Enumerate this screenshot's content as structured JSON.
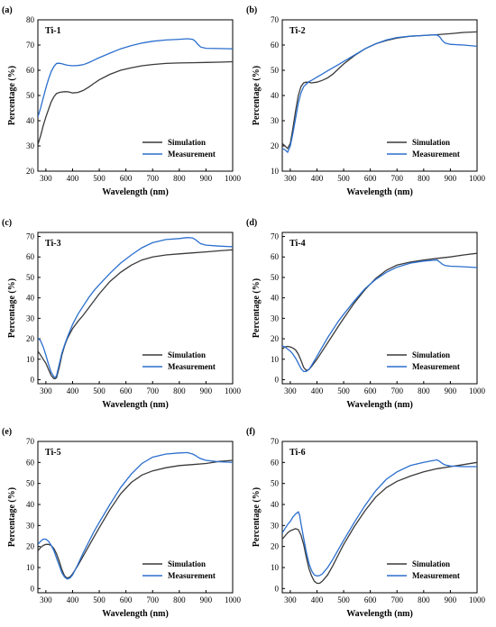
{
  "chart_data": [
    {
      "type": "line",
      "panel_label": "(a)",
      "title": "Ti-1",
      "xlabel": "Wavelength (nm)",
      "ylabel": "Percentage (%)",
      "xlim": [
        270,
        1000
      ],
      "ylim": [
        20,
        80
      ],
      "xticks": [
        300,
        400,
        500,
        600,
        700,
        800,
        900,
        1000
      ],
      "yticks": [
        20,
        30,
        40,
        50,
        60,
        70,
        80
      ],
      "legend": "bottom-right",
      "series": [
        {
          "name": "Simulation",
          "color": "#3a3a3a",
          "x": [
            270,
            280,
            290,
            300,
            310,
            320,
            330,
            340,
            350,
            360,
            370,
            380,
            390,
            400,
            420,
            440,
            460,
            480,
            500,
            540,
            580,
            620,
            660,
            700,
            750,
            800,
            850,
            900,
            950,
            1000
          ],
          "y": [
            30.5,
            34,
            38,
            41.5,
            44.5,
            47.5,
            49.5,
            50.8,
            51.2,
            51.4,
            51.5,
            51.5,
            51.3,
            51,
            51.2,
            52,
            53.3,
            54.8,
            56.2,
            58.4,
            60,
            61,
            61.8,
            62.3,
            62.7,
            62.9,
            63,
            63.1,
            63.2,
            63.4
          ]
        },
        {
          "name": "Measurement",
          "color": "#2b6fce",
          "x": [
            270,
            280,
            290,
            300,
            310,
            320,
            330,
            340,
            350,
            360,
            370,
            380,
            400,
            420,
            440,
            460,
            480,
            500,
            540,
            580,
            620,
            660,
            700,
            750,
            800,
            830,
            850,
            860,
            870,
            880,
            900,
            950,
            1000
          ],
          "y": [
            41.5,
            45,
            49,
            53,
            56.5,
            59.5,
            61.5,
            62.7,
            62.8,
            62.6,
            62.3,
            62,
            61.8,
            61.9,
            62.2,
            63,
            64,
            65,
            66.8,
            68.5,
            69.8,
            70.8,
            71.5,
            72,
            72.3,
            72.5,
            72.3,
            71.5,
            70.2,
            69.2,
            68.7,
            68.6,
            68.5
          ]
        }
      ]
    },
    {
      "type": "line",
      "panel_label": "(b)",
      "title": "Ti-2",
      "xlabel": "Wavelength (nm)",
      "ylabel": "Percentage (%)",
      "xlim": [
        270,
        1000
      ],
      "ylim": [
        10,
        70
      ],
      "xticks": [
        300,
        400,
        500,
        600,
        700,
        800,
        900,
        1000
      ],
      "yticks": [
        10,
        20,
        30,
        40,
        50,
        60,
        70
      ],
      "legend": "bottom-right",
      "series": [
        {
          "name": "Simulation",
          "color": "#3a3a3a",
          "x": [
            270,
            280,
            290,
            300,
            310,
            320,
            330,
            340,
            350,
            360,
            370,
            380,
            400,
            420,
            440,
            460,
            480,
            500,
            540,
            580,
            620,
            660,
            700,
            750,
            800,
            850,
            900,
            950,
            1000
          ],
          "y": [
            21,
            20,
            19,
            21,
            27,
            34,
            40,
            43.5,
            45,
            45.3,
            45.2,
            45,
            45.3,
            46,
            47,
            48.5,
            50.5,
            52.5,
            55.8,
            58.5,
            60.5,
            61.8,
            62.8,
            63.5,
            63.8,
            64.1,
            64.5,
            65,
            65.2
          ]
        },
        {
          "name": "Measurement",
          "color": "#2b6fce",
          "x": [
            270,
            280,
            290,
            300,
            310,
            320,
            330,
            340,
            350,
            360,
            370,
            380,
            400,
            420,
            440,
            460,
            480,
            500,
            540,
            580,
            620,
            660,
            700,
            750,
            800,
            830,
            850,
            860,
            870,
            880,
            900,
            950,
            1000
          ],
          "y": [
            19,
            18.5,
            17.5,
            20,
            25,
            31,
            37,
            41,
            43.5,
            44.5,
            45.5,
            46,
            47.3,
            48.5,
            49.8,
            51,
            52.2,
            53.5,
            56,
            58.5,
            60.5,
            62,
            63,
            63.5,
            63.8,
            64,
            64,
            63.2,
            61.8,
            60.8,
            60.3,
            60,
            59.5
          ]
        }
      ]
    },
    {
      "type": "line",
      "panel_label": "(c)",
      "title": "Ti-3",
      "xlabel": "Wavelength (nm)",
      "ylabel": "Percentage (%)",
      "xlim": [
        270,
        1000
      ],
      "ylim": [
        -2,
        72
      ],
      "xticks": [
        300,
        400,
        500,
        600,
        700,
        800,
        900,
        1000
      ],
      "yticks": [
        0,
        10,
        20,
        30,
        40,
        50,
        60,
        70
      ],
      "legend": "bottom-right",
      "series": [
        {
          "name": "Simulation",
          "color": "#3a3a3a",
          "x": [
            270,
            280,
            290,
            300,
            310,
            320,
            330,
            335,
            340,
            350,
            360,
            370,
            380,
            400,
            420,
            440,
            460,
            480,
            500,
            540,
            580,
            620,
            660,
            700,
            750,
            800,
            850,
            900,
            950,
            1000
          ],
          "y": [
            14,
            12,
            10,
            8,
            5,
            2,
            0.5,
            0.5,
            1,
            6,
            12,
            16.5,
            20,
            25,
            28.5,
            31.5,
            35,
            38.5,
            42,
            48,
            52.5,
            56,
            58.5,
            60,
            61,
            61.5,
            62,
            62.5,
            63,
            63.5
          ]
        },
        {
          "name": "Measurement",
          "color": "#2b6fce",
          "x": [
            270,
            280,
            290,
            300,
            310,
            320,
            330,
            335,
            340,
            350,
            360,
            370,
            380,
            400,
            420,
            440,
            460,
            480,
            500,
            540,
            580,
            620,
            660,
            700,
            750,
            800,
            830,
            850,
            860,
            870,
            880,
            900,
            950,
            1000
          ],
          "y": [
            20.5,
            19,
            16,
            12,
            7.5,
            3.5,
            1.5,
            1,
            2,
            7.5,
            13,
            17,
            20.5,
            27,
            32,
            36,
            40,
            43.5,
            46.5,
            52,
            57,
            61,
            64.5,
            67,
            68.5,
            69,
            69.5,
            69.3,
            68.5,
            67.5,
            66.5,
            65.8,
            65.3,
            65
          ]
        }
      ]
    },
    {
      "type": "line",
      "panel_label": "(d)",
      "title": "Ti-4",
      "xlabel": "Wavelength (nm)",
      "ylabel": "Percentage (%)",
      "xlim": [
        270,
        1000
      ],
      "ylim": [
        -2,
        72
      ],
      "xticks": [
        300,
        400,
        500,
        600,
        700,
        800,
        900,
        1000
      ],
      "yticks": [
        0,
        10,
        20,
        30,
        40,
        50,
        60,
        70
      ],
      "legend": "bottom-right",
      "series": [
        {
          "name": "Simulation",
          "color": "#3a3a3a",
          "x": [
            270,
            280,
            290,
            300,
            310,
            320,
            330,
            340,
            350,
            360,
            370,
            380,
            400,
            420,
            440,
            460,
            480,
            500,
            540,
            580,
            620,
            660,
            700,
            750,
            800,
            850,
            900,
            950,
            1000
          ],
          "y": [
            15,
            16,
            16.3,
            16,
            15.5,
            14.5,
            12.5,
            9.5,
            6,
            4.5,
            5,
            6.5,
            10,
            14,
            18,
            22,
            26,
            30,
            37.5,
            44,
            49.5,
            53.5,
            56,
            57.5,
            58.5,
            59.3,
            60,
            61,
            61.8
          ]
        },
        {
          "name": "Measurement",
          "color": "#2b6fce",
          "x": [
            270,
            280,
            290,
            300,
            310,
            320,
            330,
            340,
            350,
            360,
            370,
            380,
            400,
            420,
            440,
            460,
            480,
            500,
            540,
            580,
            620,
            660,
            700,
            750,
            800,
            830,
            850,
            860,
            870,
            880,
            900,
            950,
            1000
          ],
          "y": [
            16.5,
            16,
            15,
            14,
            12.5,
            10.5,
            8,
            5.5,
            4,
            4,
            5,
            7,
            11.5,
            16,
            20.5,
            24.5,
            28.5,
            32,
            38.5,
            44.5,
            49,
            52.5,
            55,
            57,
            58,
            58.3,
            58.5,
            57.5,
            56.5,
            55.8,
            55.5,
            55.2,
            54.8
          ]
        }
      ]
    },
    {
      "type": "line",
      "panel_label": "(e)",
      "title": "Ti-5",
      "xlabel": "Wavelength (nm)",
      "ylabel": "Percentage (%)",
      "xlim": [
        270,
        1000
      ],
      "ylim": [
        -2,
        70
      ],
      "xticks": [
        300,
        400,
        500,
        600,
        700,
        800,
        900,
        1000
      ],
      "yticks": [
        0,
        10,
        20,
        30,
        40,
        50,
        60,
        70
      ],
      "legend": "bottom-right",
      "series": [
        {
          "name": "Simulation",
          "color": "#3a3a3a",
          "x": [
            270,
            280,
            290,
            300,
            310,
            320,
            330,
            340,
            350,
            360,
            370,
            380,
            390,
            400,
            420,
            440,
            460,
            480,
            500,
            540,
            580,
            620,
            660,
            700,
            750,
            800,
            850,
            900,
            950,
            1000
          ],
          "y": [
            18,
            19.5,
            20.5,
            21,
            21,
            20.5,
            19,
            16.5,
            13,
            9,
            6,
            5,
            5.5,
            7,
            11,
            15.5,
            20,
            24.5,
            29,
            37.5,
            45,
            50.5,
            54,
            56,
            57.5,
            58.5,
            59,
            59.5,
            60.5,
            61
          ]
        },
        {
          "name": "Measurement",
          "color": "#2b6fce",
          "x": [
            270,
            280,
            290,
            300,
            310,
            320,
            330,
            340,
            350,
            360,
            370,
            380,
            390,
            400,
            420,
            440,
            460,
            480,
            500,
            540,
            580,
            620,
            660,
            700,
            750,
            800,
            830,
            850,
            860,
            870,
            880,
            900,
            950,
            1000
          ],
          "y": [
            21,
            22.5,
            23.5,
            23.5,
            22.5,
            20.5,
            18,
            14.5,
            11,
            7.5,
            5.5,
            4.5,
            5,
            6.5,
            11.5,
            17,
            22,
            27,
            31.5,
            40,
            48,
            54.5,
            59.5,
            62.5,
            64,
            64.5,
            64.7,
            64,
            63.3,
            62.5,
            61.8,
            61,
            60.3,
            60
          ]
        }
      ]
    },
    {
      "type": "line",
      "panel_label": "(f)",
      "title": "Ti-6",
      "xlabel": "Wavelength (nm)",
      "ylabel": "Percentage (%)",
      "xlim": [
        270,
        1000
      ],
      "ylim": [
        -2,
        70
      ],
      "xticks": [
        300,
        400,
        500,
        600,
        700,
        800,
        900,
        1000
      ],
      "yticks": [
        0,
        10,
        20,
        30,
        40,
        50,
        60,
        70
      ],
      "legend": "bottom-right",
      "series": [
        {
          "name": "Simulation",
          "color": "#3a3a3a",
          "x": [
            270,
            280,
            290,
            300,
            310,
            320,
            330,
            340,
            350,
            360,
            370,
            380,
            390,
            400,
            410,
            420,
            440,
            460,
            480,
            500,
            540,
            580,
            620,
            660,
            700,
            750,
            800,
            850,
            900,
            950,
            1000
          ],
          "y": [
            23.5,
            25,
            26.5,
            27.5,
            28,
            28.5,
            28,
            25.5,
            21,
            15,
            9.5,
            6,
            3.5,
            2.5,
            2.5,
            3.5,
            6.5,
            11,
            16,
            21,
            29.5,
            37,
            43.5,
            48,
            51,
            53.5,
            55.5,
            57,
            58,
            59,
            60
          ]
        },
        {
          "name": "Measurement",
          "color": "#2b6fce",
          "x": [
            270,
            280,
            290,
            300,
            310,
            320,
            330,
            335,
            340,
            350,
            360,
            370,
            380,
            390,
            400,
            410,
            420,
            440,
            460,
            480,
            500,
            540,
            580,
            620,
            660,
            700,
            750,
            800,
            830,
            850,
            860,
            870,
            880,
            900,
            950,
            1000
          ],
          "y": [
            26.5,
            28.5,
            30.5,
            32,
            34,
            35.5,
            36.5,
            35,
            31,
            24,
            17.5,
            12,
            8.5,
            6.5,
            6,
            6.2,
            7,
            10,
            14,
            18.5,
            23,
            31.5,
            39.5,
            46.5,
            52,
            55.5,
            58.5,
            60,
            60.8,
            61.2,
            60.5,
            59.5,
            58.8,
            58.3,
            58,
            58
          ]
        }
      ]
    }
  ]
}
